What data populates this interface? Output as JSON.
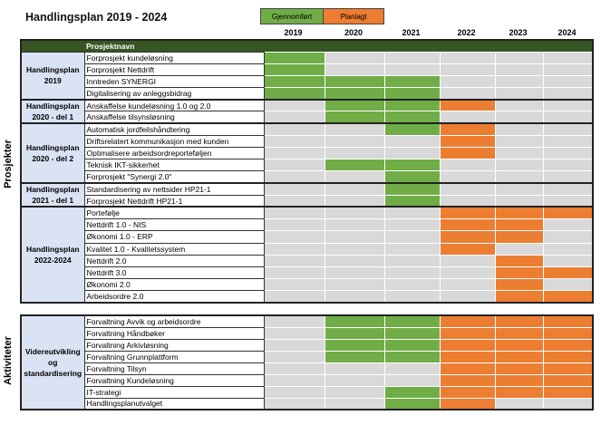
{
  "title": "Handlingsplan 2019 - 2024",
  "legend": {
    "done": "Gjennomført",
    "planned": "Planlagt"
  },
  "colors": {
    "done": "#70ad47",
    "planned": "#ed7d31",
    "empty": "#d9d9d9",
    "header": "#375623"
  },
  "years": [
    "2019",
    "2020",
    "2021",
    "2022",
    "2023",
    "2024"
  ],
  "header_label": "Prosjektnavn",
  "sections": [
    {
      "label": "Prosjekter",
      "groups": [
        {
          "label": "Handlingsplan 2019",
          "rows": [
            {
              "name": "Forprosjekt kundeløsning",
              "status": [
                "done",
                "",
                "",
                "",
                "",
                ""
              ]
            },
            {
              "name": "Forprosjekt Nettdrift",
              "status": [
                "done",
                "",
                "",
                "",
                "",
                ""
              ]
            },
            {
              "name": "Inntreden SYNERGI",
              "status": [
                "done",
                "done",
                "done",
                "",
                "",
                ""
              ]
            },
            {
              "name": "Digitalisering av anleggsbidrag",
              "status": [
                "done",
                "done",
                "done",
                "",
                "",
                ""
              ]
            }
          ]
        },
        {
          "label": "Handlingsplan 2020 - del 1",
          "rows": [
            {
              "name": "Anskaffelse kundeløsning 1.0 og 2.0",
              "status": [
                "",
                "done",
                "done",
                "planned",
                "",
                ""
              ]
            },
            {
              "name": "Anskaffelse tilsynsløsning",
              "status": [
                "",
                "done",
                "done",
                "",
                "",
                ""
              ]
            }
          ]
        },
        {
          "label": "Handlingsplan 2020 - del 2",
          "rows": [
            {
              "name": "Automatisk jordfeilshåndtering",
              "status": [
                "",
                "",
                "done",
                "planned",
                "",
                ""
              ]
            },
            {
              "name": "Driftsrelatert kommunikasjon med kunden",
              "status": [
                "",
                "",
                "",
                "planned",
                "",
                ""
              ]
            },
            {
              "name": "Optimalisere arbeidsordreporteføljen",
              "status": [
                "",
                "",
                "",
                "planned",
                "",
                ""
              ]
            },
            {
              "name": "Teknisk IKT-sikkerhet",
              "status": [
                "",
                "done",
                "done",
                "",
                "",
                ""
              ]
            },
            {
              "name": "Forprosjekt \"Synergi 2.0\"",
              "status": [
                "",
                "",
                "done",
                "",
                "",
                ""
              ]
            }
          ]
        },
        {
          "label": "Handlingsplan 2021 - del 1",
          "rows": [
            {
              "name": "Standardisering av nettsider HP21-1",
              "status": [
                "",
                "",
                "done",
                "",
                "",
                ""
              ]
            },
            {
              "name": "Forprosjekt Nettdrift HP21-1",
              "status": [
                "",
                "",
                "done",
                "",
                "",
                ""
              ]
            }
          ]
        },
        {
          "label": "Handlingsplan 2022-2024",
          "rows": [
            {
              "name": "Portefølje",
              "status": [
                "",
                "",
                "",
                "planned",
                "planned",
                "planned"
              ]
            },
            {
              "name": "Nettdrift 1.0 - NIS",
              "status": [
                "",
                "",
                "",
                "planned",
                "planned",
                ""
              ]
            },
            {
              "name": "Økonomi 1.0 - ERP",
              "status": [
                "",
                "",
                "",
                "planned",
                "planned",
                ""
              ]
            },
            {
              "name": "Kvalitet 1.0 - Kvalitetssystem",
              "status": [
                "",
                "",
                "",
                "planned",
                "",
                ""
              ]
            },
            {
              "name": "Nettdrift 2.0",
              "status": [
                "",
                "",
                "",
                "",
                "planned",
                ""
              ]
            },
            {
              "name": "Nettdrift 3.0",
              "status": [
                "",
                "",
                "",
                "",
                "planned",
                "planned"
              ]
            },
            {
              "name": "Økonomi 2.0",
              "status": [
                "",
                "",
                "",
                "",
                "planned",
                ""
              ]
            },
            {
              "name": "Arbeidsordre 2.0",
              "status": [
                "",
                "",
                "",
                "",
                "planned",
                "planned"
              ]
            }
          ]
        }
      ]
    },
    {
      "label": "Aktiviteter",
      "groups": [
        {
          "label": "Videreutvikling og standardisering",
          "rows": [
            {
              "name": "Forvaltning Avvik og arbeidsordre",
              "status": [
                "",
                "done",
                "done",
                "planned",
                "planned",
                "planned"
              ]
            },
            {
              "name": "Forvaltning Håndbøker",
              "status": [
                "",
                "done",
                "done",
                "planned",
                "planned",
                "planned"
              ]
            },
            {
              "name": "Forvaltning Arkivløsning",
              "status": [
                "",
                "done",
                "done",
                "planned",
                "planned",
                "planned"
              ]
            },
            {
              "name": "Forvaltning Grunnplattform",
              "status": [
                "",
                "done",
                "done",
                "planned",
                "planned",
                "planned"
              ]
            },
            {
              "name": "Forvaltning Tilsyn",
              "status": [
                "",
                "",
                "",
                "planned",
                "planned",
                "planned"
              ]
            },
            {
              "name": "Forvaltning Kundeløsning",
              "status": [
                "",
                "",
                "",
                "planned",
                "planned",
                "planned"
              ]
            },
            {
              "name": "IT-strategi",
              "status": [
                "",
                "",
                "done",
                "planned",
                "planned",
                "planned"
              ]
            },
            {
              "name": "Handlingsplanutvalget",
              "status": [
                "",
                "",
                "done",
                "planned",
                "",
                ""
              ]
            }
          ]
        }
      ]
    }
  ]
}
